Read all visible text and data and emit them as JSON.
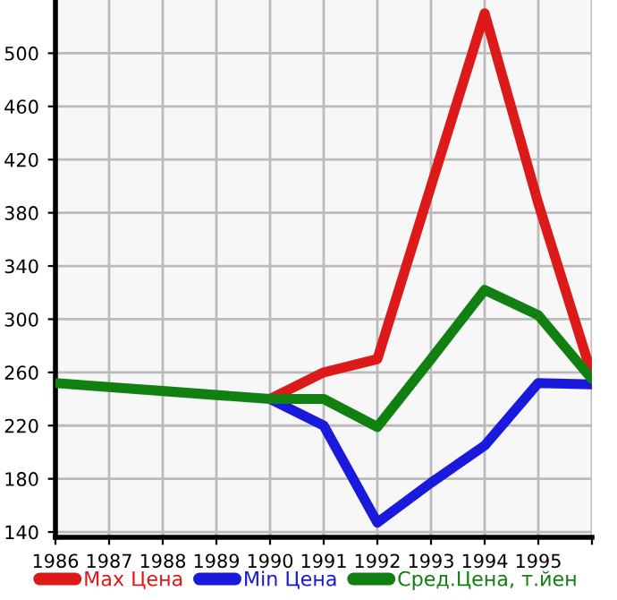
{
  "chart_data": {
    "type": "line",
    "x": [
      1986,
      1987,
      1988,
      1989,
      1990,
      1991,
      1992,
      1993,
      1994,
      1995,
      1996
    ],
    "xlim": [
      1986,
      1996
    ],
    "xticks": [
      1986,
      1987,
      1988,
      1989,
      1990,
      1991,
      1992,
      1993,
      1994,
      1995,
      {
        "value": 1996,
        "label": null
      }
    ],
    "ylim": [
      136,
      540
    ],
    "yticks": [
      140,
      180,
      220,
      260,
      300,
      340,
      380,
      420,
      460,
      500
    ],
    "grid": true,
    "legend": "bottom",
    "marker": "none",
    "line_style": "solid",
    "series": [
      {
        "name": "Max Цена",
        "color": "#dd1a1a",
        "values": [
          null,
          null,
          null,
          null,
          240,
          260,
          270,
          400,
          530,
          387,
          258
        ]
      },
      {
        "name": "Min Цена",
        "color": "#1a1add",
        "values": [
          null,
          null,
          null,
          null,
          240,
          220,
          147,
          177,
          205,
          252,
          251
        ]
      },
      {
        "name": "Сред.Цена, т.йен",
        "color": "#118011",
        "values": [
          252,
          249,
          246,
          243,
          240,
          240,
          219,
          270,
          322,
          303,
          255
        ]
      }
    ]
  }
}
